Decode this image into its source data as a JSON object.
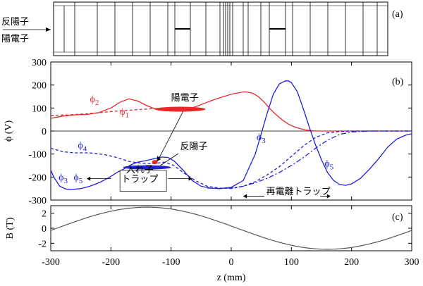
{
  "chart_data": [
    {
      "panel": "(a)",
      "type": "diagram",
      "title": "electrode stack",
      "labels": [
        "反陽子",
        "陽電子"
      ],
      "panel_label": "(a)"
    },
    {
      "panel": "(b)",
      "type": "line",
      "panel_label": "(b)",
      "ylabel": "ϕ (V)",
      "xlim": [
        -300,
        300
      ],
      "ylim": [
        -300,
        300
      ],
      "yticks": [
        -300,
        -200,
        -100,
        0,
        100,
        200,
        300
      ],
      "colors": {
        "red": "#e8282b",
        "blue": "#2020d8"
      },
      "series": [
        {
          "name": "ϕ2",
          "color": "red",
          "style": "solid",
          "x": [
            -300,
            -280,
            -260,
            -240,
            -220,
            -200,
            -185,
            -170,
            -155,
            -140,
            -125,
            -110,
            -100,
            -90,
            -75,
            -60,
            -45,
            -30,
            -15,
            0,
            10,
            20,
            25,
            35,
            45,
            55,
            65,
            75,
            85,
            95,
            105,
            115,
            125,
            135,
            145,
            160,
            180,
            200,
            230,
            260,
            300
          ],
          "y": [
            55,
            65,
            70,
            72,
            80,
            100,
            125,
            140,
            130,
            110,
            95,
            88,
            88,
            90,
            95,
            105,
            120,
            135,
            148,
            160,
            165,
            170,
            170,
            165,
            150,
            125,
            95,
            70,
            48,
            30,
            18,
            10,
            4,
            1,
            0,
            0,
            0,
            0,
            0,
            0,
            0
          ]
        },
        {
          "name": "ϕ1",
          "color": "red",
          "style": "dashed",
          "x": [
            -300,
            -270,
            -240,
            -210,
            -185,
            -160,
            -130,
            -110,
            -90,
            -70,
            -55,
            -45
          ],
          "y": [
            68,
            70,
            75,
            82,
            88,
            92,
            97,
            98,
            98,
            97,
            96,
            95
          ]
        },
        {
          "name": "ϕ4",
          "color": "blue",
          "style": "dashed",
          "x": [
            -300,
            -280,
            -260,
            -235,
            -210,
            -190,
            -170,
            -150,
            -130,
            -110,
            -95,
            -80,
            -60,
            -40,
            -20,
            0,
            20,
            40,
            60,
            80,
            100,
            120,
            140,
            160,
            180,
            200,
            230,
            260,
            300
          ],
          "y": [
            -75,
            -90,
            -95,
            -95,
            -103,
            -115,
            -132,
            -140,
            -142,
            -135,
            -150,
            -180,
            -215,
            -240,
            -248,
            -250,
            -240,
            -220,
            -190,
            -155,
            -110,
            -65,
            -28,
            -8,
            -2,
            0,
            0,
            0,
            0
          ]
        },
        {
          "name": "ϕ3",
          "color": "blue",
          "style": "solid",
          "x": [
            -300,
            -295,
            -285,
            -275,
            -265,
            -250,
            -235,
            -220,
            -205,
            -190,
            -175,
            -165,
            -155,
            -145,
            -135,
            -125,
            -115,
            -105,
            -95,
            -80,
            -65,
            -50,
            -35,
            -20,
            0,
            20,
            40,
            50,
            60,
            70,
            80,
            90,
            95,
            100,
            110,
            120,
            130,
            140,
            150,
            160,
            170,
            180,
            190,
            200,
            215,
            230,
            245,
            260,
            275,
            290,
            300
          ],
          "y": [
            -170,
            -200,
            -240,
            -252,
            -254,
            -250,
            -240,
            -225,
            -205,
            -180,
            -160,
            -145,
            -135,
            -130,
            -125,
            -118,
            -113,
            -115,
            -130,
            -170,
            -215,
            -240,
            -248,
            -250,
            -245,
            -215,
            -100,
            -10,
            80,
            160,
            205,
            218,
            218,
            210,
            170,
            95,
            15,
            -60,
            -125,
            -180,
            -215,
            -232,
            -236,
            -230,
            -205,
            -165,
            -120,
            -70,
            -35,
            -18,
            -12
          ]
        },
        {
          "name": "ϕ5",
          "color": "blue",
          "style": "dashdot",
          "x": [
            -40,
            -20,
            0,
            20,
            40,
            60,
            80,
            100,
            120,
            140,
            160,
            180,
            200,
            230,
            260,
            300
          ],
          "y": [
            -248,
            -250,
            -248,
            -240,
            -225,
            -205,
            -180,
            -150,
            -115,
            -75,
            -40,
            -15,
            -4,
            0,
            0,
            0
          ]
        }
      ],
      "labels": {
        "phi2": "ϕ2",
        "phi1": "ϕ1",
        "phi4": "ϕ4",
        "phi3_left": "ϕ3",
        "phi5_left": "ϕ5",
        "phi3_right": "ϕ3",
        "phi5_right": "ϕ5",
        "positron": "陽電子",
        "antiproton": "反陽子",
        "trap_top": "入れ子",
        "trap_bottom": "トラップ",
        "recomb": "再電離トラップ"
      }
    },
    {
      "panel": "(c)",
      "type": "line",
      "panel_label": "(c)",
      "ylabel": "B (T)",
      "xlabel": "z (mm)",
      "xlim": [
        -300,
        300
      ],
      "ylim": [
        -3,
        3
      ],
      "yticks": [
        -2,
        0,
        2
      ],
      "xticks": [
        -300,
        -200,
        -100,
        0,
        100,
        200,
        300
      ],
      "series": [
        {
          "name": "B",
          "color": "#555555",
          "style": "solid",
          "function": "sine",
          "amplitude": 2.8,
          "period_mm": 600,
          "peak_at_mm": -140
        }
      ]
    }
  ]
}
